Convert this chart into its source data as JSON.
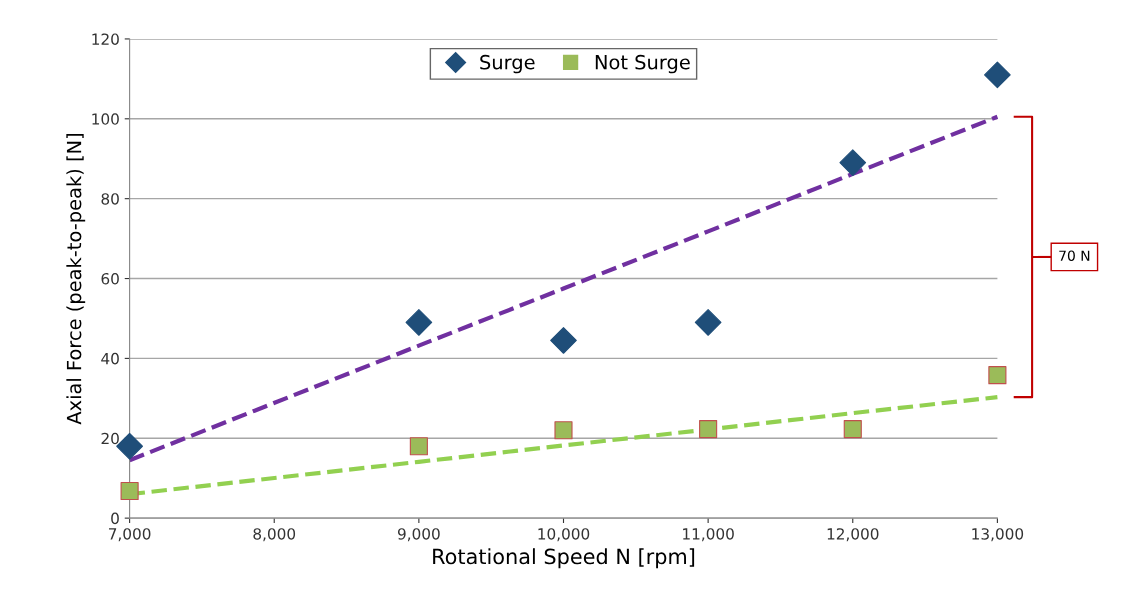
{
  "chart_data": {
    "type": "scatter",
    "xlabel": "Rotational Speed N [rpm]",
    "ylabel": "Axial Force (peak-to-peak) [N]",
    "x": [
      7000,
      9000,
      10000,
      11000,
      12000,
      13000
    ],
    "series": [
      {
        "name": "Surge",
        "color": "#1f4e79",
        "marker": "diamond",
        "values": [
          18,
          49,
          44.5,
          49,
          89,
          111
        ]
      },
      {
        "name": "Not Surge",
        "color": "#9bbb59",
        "marker": "square",
        "values": [
          6.8,
          18,
          22,
          22.3,
          22.3,
          35.8
        ]
      },
      {
        "type": "line",
        "color": "#7030a0",
        "line_style": "dashed",
        "marker": "none",
        "values": [
          14.5,
          43.2,
          57.5,
          71.8,
          86.2,
          100.5
        ]
      },
      {
        "type": "line",
        "color": "#92d050",
        "line_style": "dashed",
        "marker": "none",
        "values": [
          6,
          14.1,
          18.2,
          22.2,
          26.3,
          30.3
        ]
      }
    ],
    "annotations": [
      "70 N"
    ],
    "xlim": [
      7000,
      13000
    ],
    "ylim": [
      0,
      120
    ],
    "xticks": [
      {
        "value": 7000,
        "label": "7,000"
      },
      {
        "value": 8000,
        "label": "8,000"
      },
      {
        "value": 9000,
        "label": "9,000"
      },
      {
        "value": 10000,
        "label": "10,000"
      },
      {
        "value": 11000,
        "label": "11,000"
      },
      {
        "value": 12000,
        "label": "12,000"
      },
      {
        "value": 13000,
        "label": "13,000"
      }
    ],
    "yticks": [
      0,
      20,
      40,
      60,
      80,
      100,
      120
    ],
    "grid": "y",
    "legend": "top"
  }
}
